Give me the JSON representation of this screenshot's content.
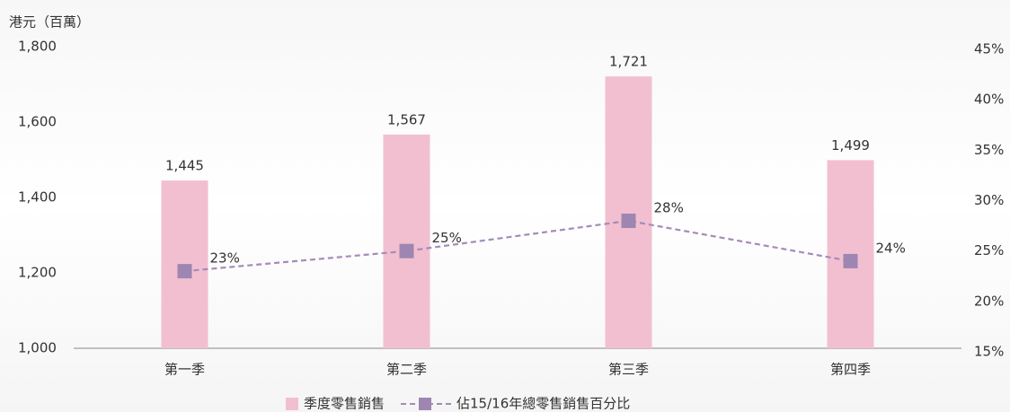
{
  "chart_data": {
    "type": "bar",
    "y_label": "港元（百萬）",
    "categories": [
      "第一季",
      "第二季",
      "第三季",
      "第四季"
    ],
    "series": [
      {
        "name": "季度零售銷售",
        "type": "bar",
        "color": "#f2bfd0",
        "values": [
          1445,
          1567,
          1721,
          1499
        ],
        "value_labels": [
          "1,445",
          "1,567",
          "1,721",
          "1,499"
        ]
      },
      {
        "name": "佔15/16年總零售銷售百分比",
        "type": "line",
        "axis": "y2",
        "color": "#a38cb8",
        "values": [
          23,
          25,
          28,
          24
        ],
        "value_labels": [
          "23%",
          "25%",
          "28%",
          "24%"
        ]
      }
    ],
    "ylim": [
      1000,
      1800
    ],
    "yticks": [
      {
        "value": 1000,
        "label": "1,000"
      },
      {
        "value": 1200,
        "label": "1,200"
      },
      {
        "value": 1400,
        "label": "1,400"
      },
      {
        "value": 1600,
        "label": "1,600"
      },
      {
        "value": 1800,
        "label": "1,800"
      }
    ],
    "y2lim": [
      15,
      45
    ],
    "y2ticks": [
      {
        "value": 15,
        "label": "15%"
      },
      {
        "value": 20,
        "label": "20%"
      },
      {
        "value": 25,
        "label": "25%"
      },
      {
        "value": 30,
        "label": "30%"
      },
      {
        "value": 35,
        "label": "35%"
      },
      {
        "value": 40,
        "label": "40%"
      },
      {
        "value": 45,
        "label": "45%"
      }
    ],
    "grid": false
  }
}
